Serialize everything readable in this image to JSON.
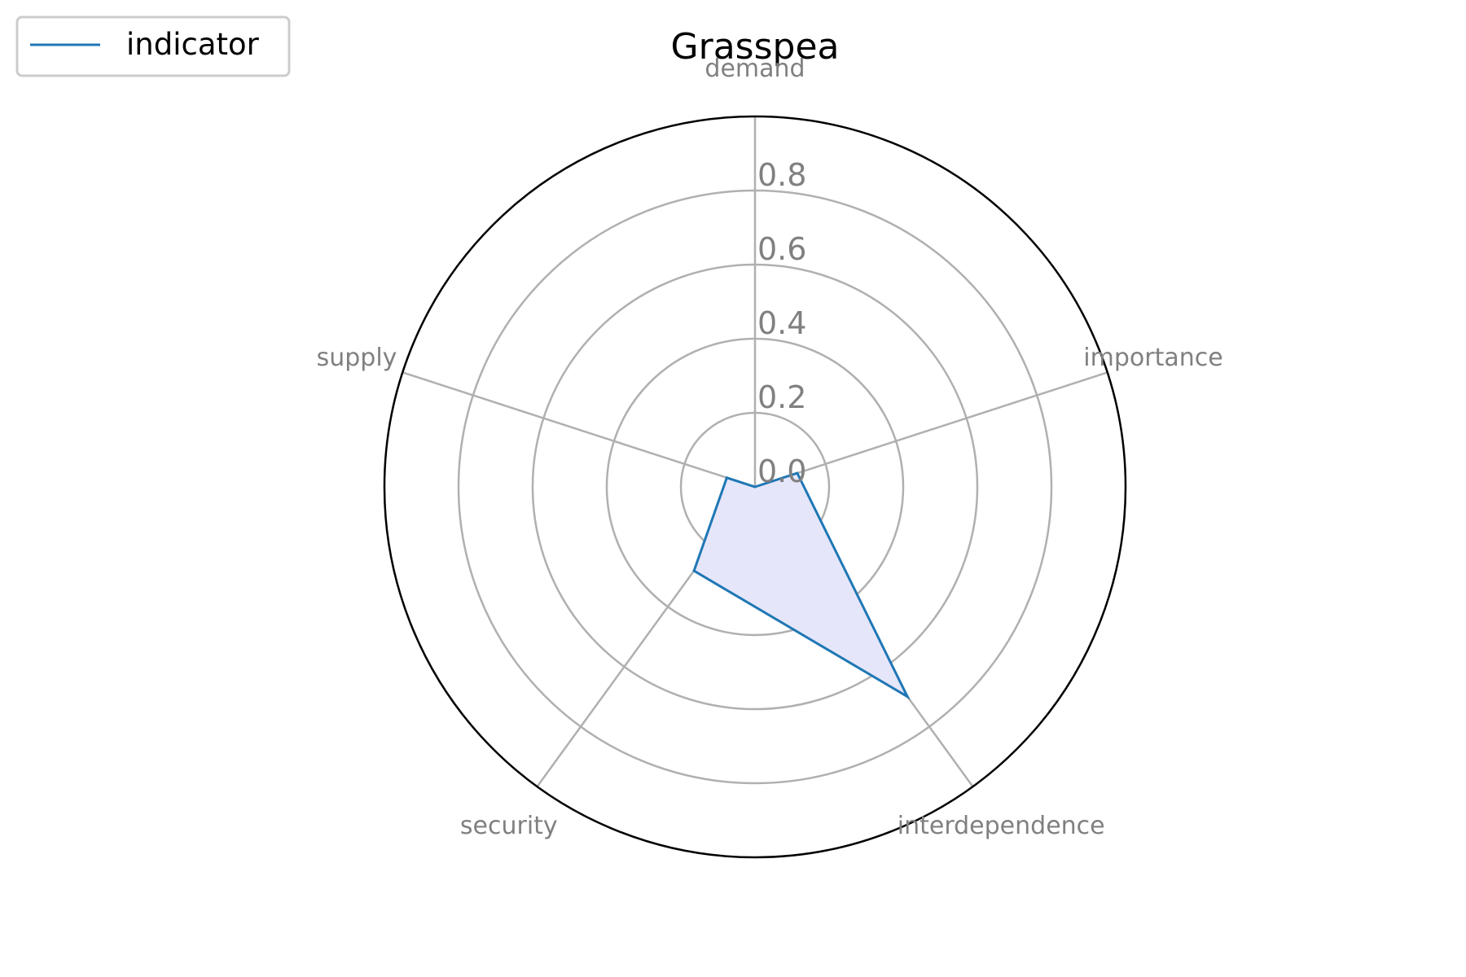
{
  "chart_data": {
    "type": "radar",
    "title": "Grasspea",
    "categories": [
      "demand",
      "importance",
      "interdependence",
      "security",
      "supply"
    ],
    "series": [
      {
        "name": "indicator",
        "values": [
          0.0,
          0.12,
          0.7,
          0.28,
          0.08
        ],
        "color": "#1f77b4",
        "fill": "#e6e6fa"
      }
    ],
    "rlim": [
      0,
      1.0
    ],
    "rticks": [
      0.0,
      0.2,
      0.4,
      0.6,
      0.8
    ],
    "rtick_labels": [
      "0.0",
      "0.2",
      "0.4",
      "0.6",
      "0.8"
    ],
    "grid": true,
    "legend_position": "top-left"
  }
}
